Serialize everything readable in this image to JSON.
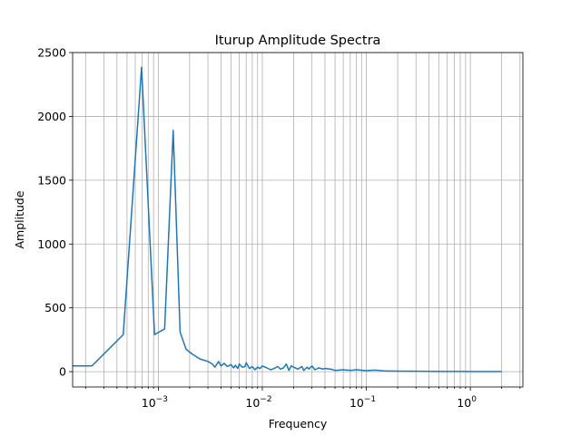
{
  "chart_data": {
    "type": "line",
    "title": "Iturup Amplitude Spectra",
    "xlabel": "Frequency",
    "ylabel": "Amplitude",
    "xscale": "log",
    "xlim": [
      0.00015,
      3.2
    ],
    "ylim": [
      -120,
      2500
    ],
    "grid": {
      "x_major": true,
      "x_minor": true,
      "y_major": true
    },
    "legend": "none",
    "colors": {
      "line": "#1f77b4",
      "grid": "#b0b0b0",
      "axes": "#000000"
    },
    "x_ticks": [
      {
        "value": 0.001,
        "label": "10",
        "exp": "−3"
      },
      {
        "value": 0.01,
        "label": "10",
        "exp": "−2"
      },
      {
        "value": 0.1,
        "label": "10",
        "exp": "−1"
      },
      {
        "value": 1,
        "label": "10",
        "exp": "0"
      }
    ],
    "y_ticks": [
      {
        "value": 0,
        "label": "0"
      },
      {
        "value": 500,
        "label": "500"
      },
      {
        "value": 1000,
        "label": "1000"
      },
      {
        "value": 1500,
        "label": "1500"
      },
      {
        "value": 2000,
        "label": "2000"
      },
      {
        "value": 2500,
        "label": "2500"
      }
    ],
    "series": [
      {
        "x": [
          0.00015,
          0.00023,
          0.00046,
          0.00069,
          0.00092,
          0.00115,
          0.00139,
          0.00162,
          0.00185,
          0.0021,
          0.0025,
          0.003,
          0.0033,
          0.0035,
          0.0038,
          0.004,
          0.0043,
          0.0046,
          0.005,
          0.0053,
          0.0055,
          0.0058,
          0.006,
          0.0064,
          0.0068,
          0.007,
          0.0075,
          0.008,
          0.0085,
          0.009,
          0.0095,
          0.01,
          0.011,
          0.012,
          0.013,
          0.014,
          0.015,
          0.016,
          0.017,
          0.018,
          0.019,
          0.02,
          0.022,
          0.024,
          0.025,
          0.027,
          0.028,
          0.03,
          0.032,
          0.035,
          0.038,
          0.04,
          0.045,
          0.05,
          0.06,
          0.07,
          0.08,
          0.1,
          0.12,
          0.15,
          0.2,
          0.3,
          0.5,
          1.0,
          2.0
        ],
        "y": [
          45,
          45,
          290,
          2385,
          290,
          335,
          1890,
          310,
          175,
          140,
          100,
          80,
          60,
          35,
          80,
          45,
          65,
          40,
          55,
          30,
          50,
          25,
          60,
          35,
          40,
          70,
          25,
          40,
          15,
          35,
          25,
          45,
          30,
          15,
          25,
          40,
          20,
          30,
          60,
          10,
          45,
          35,
          20,
          40,
          10,
          35,
          20,
          45,
          15,
          30,
          20,
          25,
          20,
          10,
          15,
          10,
          15,
          8,
          12,
          6,
          4,
          3,
          2,
          1,
          1
        ]
      }
    ]
  }
}
